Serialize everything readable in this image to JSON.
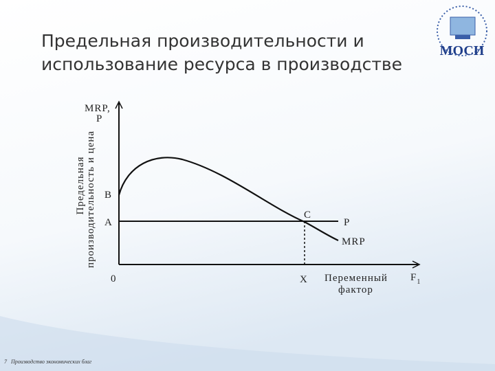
{
  "header": {
    "title_lines": [
      "Предельная производительности и",
      "использование ресурса в производстве"
    ],
    "logo": "МОСИ"
  },
  "diagram": {
    "axis_top_lines": [
      "MRP,",
      "P"
    ],
    "y_title_lines": [
      "Предельная",
      "производительность и цена"
    ],
    "point_labels": [
      "B",
      "A",
      "C"
    ],
    "line_labels": [
      "P",
      "MRP"
    ],
    "origin": "0",
    "x_point": "X",
    "x_title_lines": [
      "Переменный",
      "фактор"
    ],
    "x_axis_end": "F",
    "x_axis_end_sub": "1"
  },
  "footer": {
    "page": "7",
    "text": "Производство экономических благ"
  }
}
